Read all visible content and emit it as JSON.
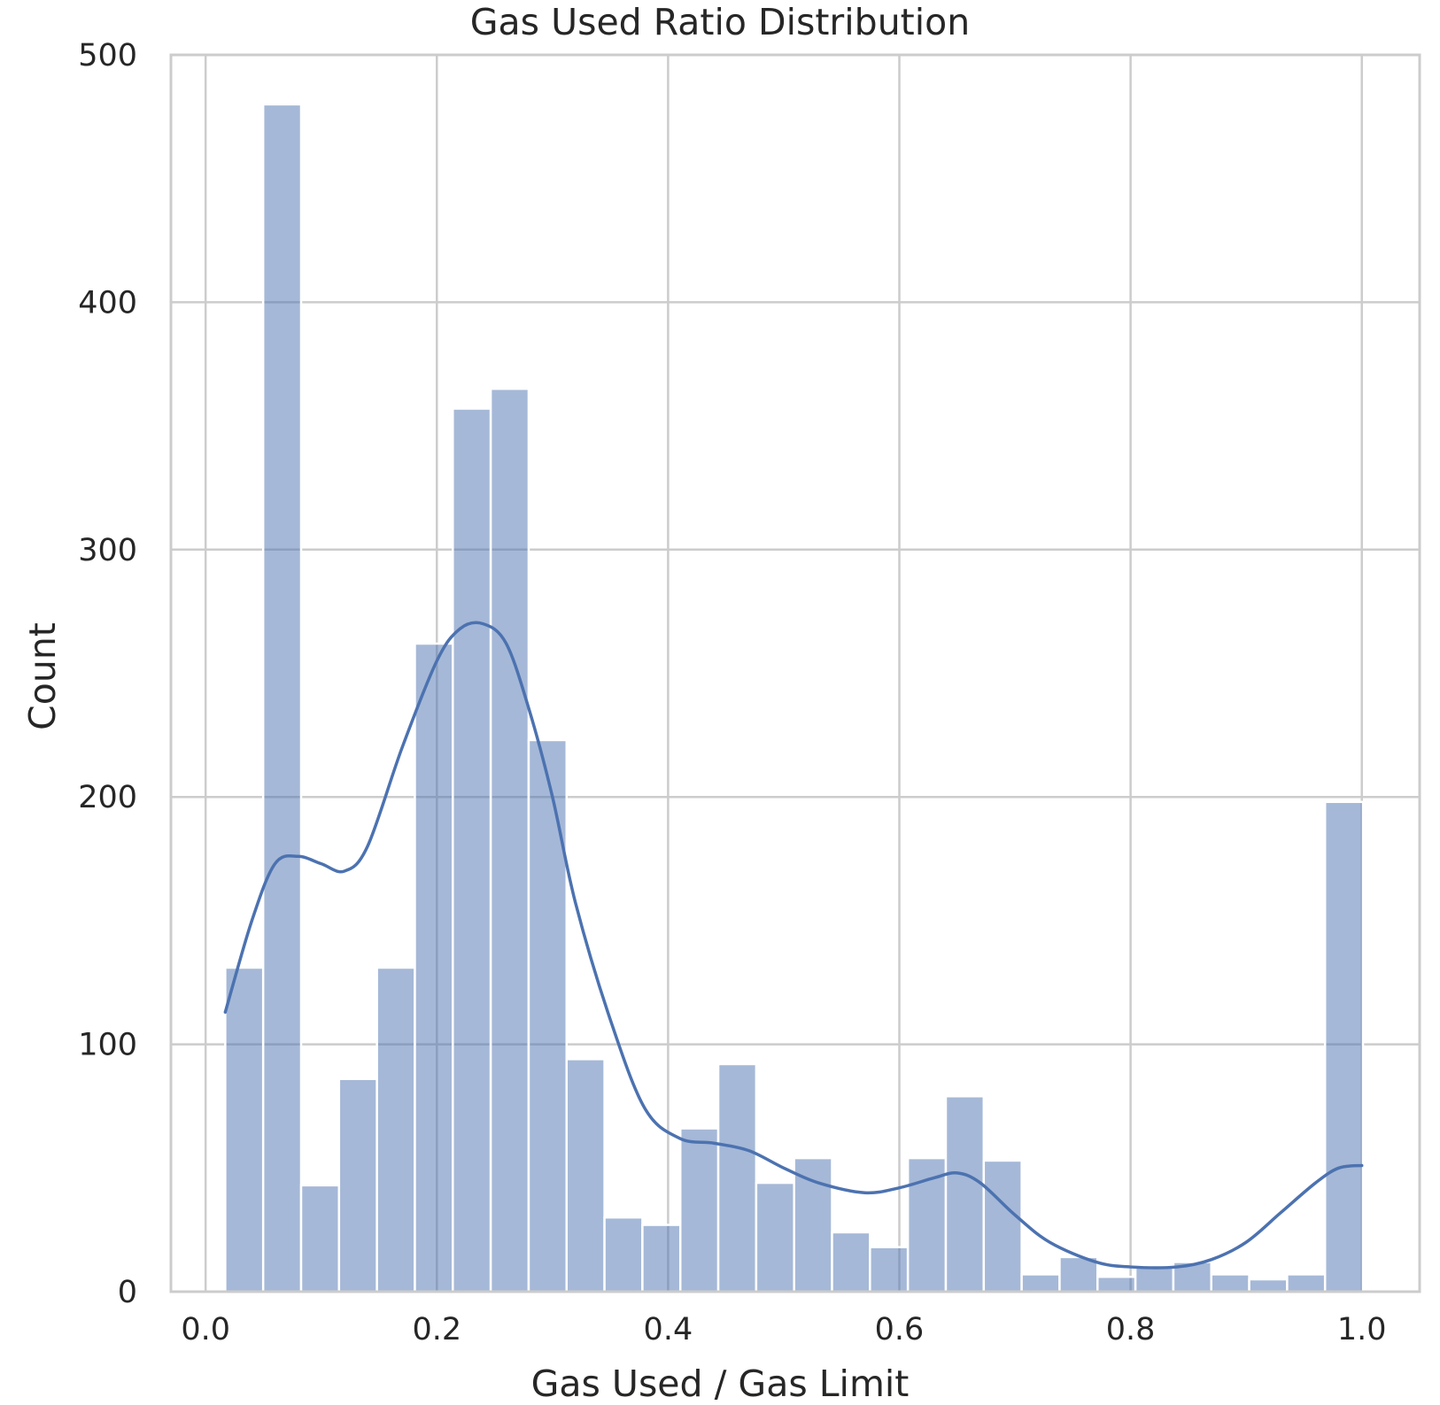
{
  "chart_data": {
    "type": "bar",
    "title": "Gas Used Ratio Distribution",
    "xlabel": "Gas Used / Gas Limit",
    "ylabel": "Count",
    "xlim": [
      -0.03,
      1.05
    ],
    "ylim": [
      0,
      500
    ],
    "xticks": [
      0.0,
      0.2,
      0.4,
      0.6,
      0.8,
      1.0
    ],
    "xtick_labels": [
      "0.0",
      "0.2",
      "0.4",
      "0.6",
      "0.8",
      "1.0"
    ],
    "yticks": [
      0,
      100,
      200,
      300,
      400,
      500
    ],
    "ytick_labels": [
      "0",
      "100",
      "200",
      "300",
      "400",
      "500"
    ],
    "grid": true,
    "bins": {
      "start": 0.017,
      "width": 0.0328,
      "counts": [
        131,
        480,
        43,
        86,
        131,
        262,
        357,
        365,
        223,
        94,
        30,
        27,
        66,
        92,
        44,
        54,
        24,
        18,
        54,
        79,
        53,
        7,
        14,
        6,
        10,
        12,
        7,
        5,
        7,
        198
      ]
    },
    "kde": {
      "x": [
        0.017,
        0.04,
        0.06,
        0.08,
        0.1,
        0.12,
        0.14,
        0.17,
        0.2,
        0.22,
        0.24,
        0.26,
        0.28,
        0.3,
        0.32,
        0.35,
        0.38,
        0.41,
        0.44,
        0.47,
        0.5,
        0.53,
        0.57,
        0.6,
        0.63,
        0.65,
        0.67,
        0.7,
        0.73,
        0.77,
        0.8,
        0.84,
        0.87,
        0.9,
        0.93,
        0.96,
        0.98,
        1.0
      ],
      "y": [
        113,
        150,
        173,
        176,
        173,
        170,
        180,
        220,
        255,
        268,
        270,
        262,
        235,
        200,
        157,
        110,
        74,
        62,
        60,
        57,
        50,
        44,
        40,
        42,
        46,
        48,
        44,
        31,
        20,
        12,
        10,
        10,
        13,
        20,
        32,
        44,
        50,
        51
      ]
    },
    "bar_color": "#4c72b0",
    "bar_opacity": 0.5,
    "line_color": "#4c72b0"
  }
}
